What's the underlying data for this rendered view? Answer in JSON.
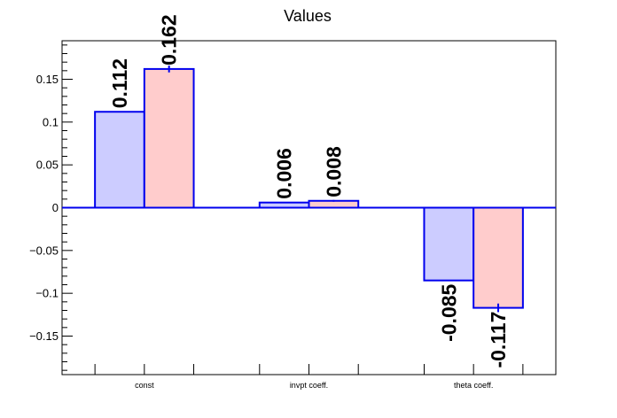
{
  "chart_data": {
    "type": "bar",
    "title": "Values",
    "xlabel": "",
    "ylabel": "",
    "categories": [
      "const",
      "invpt coeff.",
      "theta coeff."
    ],
    "series": [
      {
        "values": [
          0.112,
          0.006,
          -0.085
        ],
        "value_labels": [
          "0.112",
          "0.006",
          "-0.085"
        ],
        "errors": [
          0,
          0,
          0
        ],
        "fill": "#ccccff",
        "stroke": "#0000ee"
      },
      {
        "values": [
          0.162,
          0.008,
          -0.117
        ],
        "value_labels": [
          "0.162",
          "0.008",
          "-0.117"
        ],
        "errors": [
          0.004,
          0.001,
          0.005
        ],
        "fill": "#ffcccc",
        "stroke": "#0000ee"
      }
    ],
    "ylim": [
      -0.195,
      0.195
    ],
    "yticks": [
      -0.15,
      -0.1,
      -0.05,
      0,
      0.05,
      0.1,
      0.15
    ],
    "ytick_labels": [
      "−0.15",
      "−0.1",
      "−0.05",
      "0",
      "0.05",
      "0.1",
      "0.15"
    ],
    "grid": false,
    "legend": "none"
  }
}
